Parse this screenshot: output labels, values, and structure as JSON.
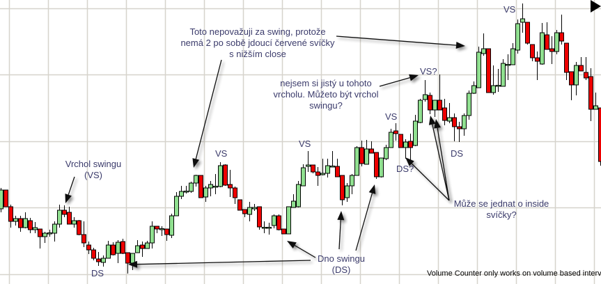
{
  "chart_data": {
    "type": "candlestick",
    "grid": true,
    "ylim": [
      0,
      408
    ],
    "colors": {
      "up": "#90e090",
      "down": "#ee0000",
      "wick": "#000000",
      "grid": "#d6d3cc",
      "annotation": "#3b3b6b"
    },
    "candles": [
      [
        108,
        138,
        103,
        135
      ],
      [
        135,
        135,
        111,
        111
      ],
      [
        111,
        114,
        81,
        90
      ],
      [
        90,
        98,
        84,
        94
      ],
      [
        94,
        98,
        75,
        81
      ],
      [
        81,
        103,
        80,
        94
      ],
      [
        91,
        95,
        73,
        78
      ],
      [
        78,
        89,
        73,
        81
      ],
      [
        79,
        79,
        51,
        68
      ],
      [
        68,
        75,
        59,
        73
      ],
      [
        73,
        78,
        68,
        73.5
      ],
      [
        73,
        90,
        61,
        86
      ],
      [
        86,
        114,
        81,
        106
      ],
      [
        106,
        113,
        96,
        100
      ],
      [
        103,
        111,
        86,
        86
      ],
      [
        86,
        96,
        81,
        91
      ],
      [
        91,
        92,
        70,
        71
      ],
      [
        71,
        90,
        53,
        59
      ],
      [
        56,
        61,
        43,
        49
      ],
      [
        49,
        52,
        34,
        37
      ],
      [
        36,
        46,
        26,
        32
      ],
      [
        31,
        41,
        25,
        37
      ],
      [
        37,
        62,
        37,
        56
      ],
      [
        56,
        60,
        41,
        42
      ],
      [
        44,
        63,
        30,
        60
      ],
      [
        61,
        65,
        43,
        44
      ],
      [
        45,
        45,
        15,
        30
      ],
      [
        30,
        44,
        20,
        44
      ],
      [
        45,
        63,
        45,
        55
      ],
      [
        56,
        61,
        39,
        51
      ],
      [
        51,
        62,
        51,
        59
      ],
      [
        59,
        90,
        51,
        83
      ],
      [
        83,
        83,
        73,
        79
      ],
      [
        79,
        83,
        69,
        79.5
      ],
      [
        79,
        79,
        62,
        71
      ],
      [
        70,
        101,
        66,
        98
      ],
      [
        98,
        132,
        98,
        126
      ],
      [
        126,
        141,
        122,
        133
      ],
      [
        133,
        141,
        130,
        133.5
      ],
      [
        133,
        147,
        131,
        145
      ],
      [
        145,
        157,
        140,
        156
      ],
      [
        156,
        156,
        124,
        124
      ],
      [
        125,
        141,
        118,
        138
      ],
      [
        138,
        148,
        126,
        143
      ],
      [
        140,
        158,
        129,
        140.5
      ],
      [
        140,
        175,
        139,
        170
      ],
      [
        171,
        172,
        141,
        142
      ],
      [
        143,
        164,
        125,
        138
      ],
      [
        138,
        140,
        115,
        124
      ],
      [
        121,
        121,
        106,
        106
      ],
      [
        107,
        107,
        96,
        101
      ],
      [
        100,
        118,
        90,
        110
      ],
      [
        108,
        115,
        105,
        110
      ],
      [
        111,
        111,
        78,
        82
      ],
      [
        81,
        90,
        73,
        81.5
      ],
      [
        81,
        88,
        71,
        81.5
      ],
      [
        84,
        100,
        80,
        98
      ],
      [
        98,
        100,
        77,
        78
      ],
      [
        79,
        79,
        72,
        72
      ],
      [
        72,
        111,
        72,
        111
      ],
      [
        110,
        129,
        110,
        119
      ],
      [
        111,
        148,
        110,
        143
      ],
      [
        141,
        172,
        141,
        167
      ],
      [
        169,
        191,
        161,
        171
      ],
      [
        171,
        171,
        159,
        161
      ],
      [
        161,
        168,
        141,
        156
      ],
      [
        157,
        180,
        156,
        159
      ],
      [
        159,
        180,
        153,
        170
      ],
      [
        169,
        191,
        168,
        169.5
      ],
      [
        169,
        180,
        154,
        154
      ],
      [
        156,
        156,
        113,
        121
      ],
      [
        124,
        145,
        118,
        141
      ],
      [
        141,
        158,
        129,
        156
      ],
      [
        156,
        198,
        156,
        196
      ],
      [
        196,
        206,
        169,
        173
      ],
      [
        172,
        207,
        172,
        194
      ],
      [
        194,
        205,
        188,
        188
      ],
      [
        189,
        189,
        151,
        154
      ],
      [
        154,
        181,
        153,
        181
      ],
      [
        180,
        200,
        178,
        196
      ],
      [
        196,
        223,
        196,
        218
      ],
      [
        220,
        231,
        206,
        216
      ],
      [
        215,
        215,
        196,
        196
      ],
      [
        196,
        208,
        180,
        204
      ],
      [
        205,
        216,
        178,
        196
      ],
      [
        199,
        243,
        198,
        234
      ],
      [
        232,
        266,
        231,
        264
      ],
      [
        265,
        293,
        262,
        272
      ],
      [
        271,
        275,
        244,
        250
      ],
      [
        250,
        264,
        240,
        264
      ],
      [
        264,
        301,
        250,
        250
      ],
      [
        253,
        266,
        228,
        235
      ],
      [
        234,
        260,
        231,
        239
      ],
      [
        239,
        245,
        205,
        226
      ],
      [
        226,
        233,
        204,
        223
      ],
      [
        223,
        245,
        213,
        242
      ],
      [
        242,
        278,
        236,
        274
      ],
      [
        274,
        291,
        273,
        285
      ],
      [
        282,
        341,
        282,
        333
      ],
      [
        331,
        360,
        328,
        338
      ],
      [
        338,
        338,
        275,
        275
      ],
      [
        275,
        314,
        272,
        285
      ],
      [
        285,
        309,
        276,
        285.5
      ],
      [
        284,
        323,
        284,
        317
      ],
      [
        315,
        330,
        293,
        315.5
      ],
      [
        315,
        346,
        315,
        338
      ],
      [
        336,
        380,
        331,
        374
      ],
      [
        376,
        403,
        361,
        381
      ],
      [
        376,
        376,
        344,
        346
      ],
      [
        344,
        344,
        320,
        325
      ],
      [
        325,
        334,
        293,
        320
      ],
      [
        316,
        375,
        315,
        361
      ],
      [
        358,
        376,
        337,
        337
      ],
      [
        338,
        356,
        316,
        334
      ],
      [
        334,
        365,
        330,
        361
      ],
      [
        361,
        387,
        344,
        349
      ],
      [
        346,
        346,
        293,
        304
      ],
      [
        305,
        305,
        264,
        286
      ],
      [
        286,
        319,
        271,
        314
      ],
      [
        314,
        326,
        306,
        306
      ],
      [
        304,
        326,
        293,
        296
      ],
      [
        298,
        310,
        234,
        251
      ],
      [
        251,
        275,
        251,
        256
      ],
      [
        253,
        253,
        170,
        176
      ]
    ],
    "labels": {
      "vs1": "VS",
      "vs2": "VS",
      "vs3": "VS",
      "vs4": "VS",
      "vs5": "VS?",
      "ds1": "DS",
      "ds2": "DS?",
      "ds3": "DS"
    },
    "annotations": {
      "vrchol": [
        "Vrchol swingu",
        "(VS)"
      ],
      "toto": [
        "Toto nepovažuji za swing, protože",
        "nemá 2 po sobě jdoucí červené svíčky",
        "s nižším close"
      ],
      "nejsem": [
        "nejsem si jistý u tohoto",
        "vrcholu. Můžeto být vrchol",
        "swingu?"
      ],
      "muze": [
        "Může se jednat o inside",
        "svíčky?"
      ],
      "dno": [
        "Dno swingu",
        "(DS)"
      ]
    }
  },
  "status_text": "Volume Counter only works on volume based interv",
  "icons": {
    "scroll_right": "play-triangle-icon"
  }
}
